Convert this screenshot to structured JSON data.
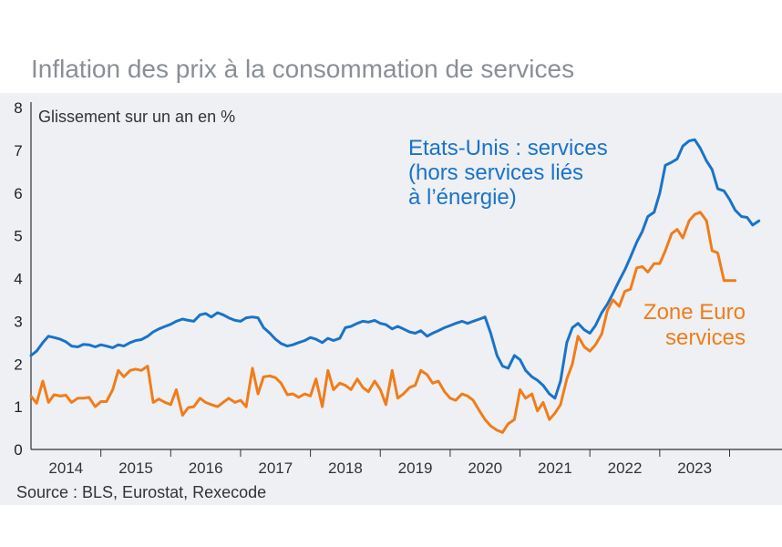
{
  "title": "Inflation des prix à la consommation de services",
  "source": "Source : BLS, Eurostat, Rexecode",
  "colors": {
    "us": "#1a73c8",
    "eu": "#f07d1a",
    "panel": "#eef0f3"
  },
  "chart_data": {
    "type": "line",
    "title": "Inflation des prix à la consommation de services",
    "ylabel": "Glissement sur un an en %",
    "xlabel": "",
    "ylim": [
      0,
      8
    ],
    "yticks": [
      0,
      1,
      2,
      3,
      4,
      5,
      6,
      7,
      8
    ],
    "xlim": [
      2013.5,
      2024.25
    ],
    "xtick_labels": [
      {
        "label": "2014",
        "x": 2014.0
      },
      {
        "label": "2015",
        "x": 2015.0
      },
      {
        "label": "2016",
        "x": 2016.0
      },
      {
        "label": "2017",
        "x": 2017.0
      },
      {
        "label": "2018",
        "x": 2018.0
      },
      {
        "label": "2019",
        "x": 2019.0
      },
      {
        "label": "2020",
        "x": 2020.0
      },
      {
        "label": "2021",
        "x": 2021.0
      },
      {
        "label": "2022",
        "x": 2022.0
      },
      {
        "label": "2023",
        "x": 2023.0
      }
    ],
    "series": [
      {
        "name": "Etats-Unis : services (hors services liés à l’énergie)",
        "label_lines": [
          "Etats-Unis : services",
          "(hors services liés",
          " à l’énergie)"
        ],
        "color": "#1a73c8",
        "points": [
          [
            2013.5,
            2.2
          ],
          [
            2013.58,
            2.3
          ],
          [
            2013.67,
            2.5
          ],
          [
            2013.75,
            2.65
          ],
          [
            2013.83,
            2.62
          ],
          [
            2013.92,
            2.58
          ],
          [
            2014.0,
            2.52
          ],
          [
            2014.08,
            2.42
          ],
          [
            2014.17,
            2.4
          ],
          [
            2014.25,
            2.46
          ],
          [
            2014.33,
            2.45
          ],
          [
            2014.42,
            2.4
          ],
          [
            2014.5,
            2.45
          ],
          [
            2014.58,
            2.42
          ],
          [
            2014.67,
            2.38
          ],
          [
            2014.75,
            2.45
          ],
          [
            2014.83,
            2.42
          ],
          [
            2014.92,
            2.5
          ],
          [
            2015.0,
            2.55
          ],
          [
            2015.08,
            2.57
          ],
          [
            2015.17,
            2.65
          ],
          [
            2015.25,
            2.75
          ],
          [
            2015.33,
            2.82
          ],
          [
            2015.42,
            2.88
          ],
          [
            2015.5,
            2.93
          ],
          [
            2015.58,
            3.0
          ],
          [
            2015.67,
            3.05
          ],
          [
            2015.75,
            3.02
          ],
          [
            2015.83,
            3.0
          ],
          [
            2015.92,
            3.15
          ],
          [
            2016.0,
            3.18
          ],
          [
            2016.08,
            3.1
          ],
          [
            2016.17,
            3.2
          ],
          [
            2016.25,
            3.15
          ],
          [
            2016.33,
            3.08
          ],
          [
            2016.42,
            3.02
          ],
          [
            2016.5,
            3.0
          ],
          [
            2016.58,
            3.08
          ],
          [
            2016.67,
            3.1
          ],
          [
            2016.75,
            3.08
          ],
          [
            2016.83,
            2.85
          ],
          [
            2016.92,
            2.72
          ],
          [
            2017.0,
            2.58
          ],
          [
            2017.08,
            2.48
          ],
          [
            2017.17,
            2.42
          ],
          [
            2017.25,
            2.45
          ],
          [
            2017.33,
            2.5
          ],
          [
            2017.42,
            2.55
          ],
          [
            2017.5,
            2.62
          ],
          [
            2017.58,
            2.58
          ],
          [
            2017.67,
            2.5
          ],
          [
            2017.75,
            2.6
          ],
          [
            2017.83,
            2.55
          ],
          [
            2017.92,
            2.6
          ],
          [
            2018.0,
            2.85
          ],
          [
            2018.08,
            2.88
          ],
          [
            2018.17,
            2.95
          ],
          [
            2018.25,
            3.0
          ],
          [
            2018.33,
            2.98
          ],
          [
            2018.42,
            3.02
          ],
          [
            2018.5,
            2.95
          ],
          [
            2018.58,
            2.92
          ],
          [
            2018.67,
            2.82
          ],
          [
            2018.75,
            2.88
          ],
          [
            2018.83,
            2.82
          ],
          [
            2018.92,
            2.75
          ],
          [
            2019.0,
            2.72
          ],
          [
            2019.08,
            2.78
          ],
          [
            2019.17,
            2.65
          ],
          [
            2019.25,
            2.72
          ],
          [
            2019.33,
            2.78
          ],
          [
            2019.42,
            2.85
          ],
          [
            2019.5,
            2.9
          ],
          [
            2019.58,
            2.95
          ],
          [
            2019.67,
            3.0
          ],
          [
            2019.75,
            2.95
          ],
          [
            2019.83,
            3.0
          ],
          [
            2019.92,
            3.05
          ],
          [
            2020.0,
            3.1
          ],
          [
            2020.08,
            2.72
          ],
          [
            2020.17,
            2.2
          ],
          [
            2020.25,
            1.95
          ],
          [
            2020.33,
            1.9
          ],
          [
            2020.42,
            2.2
          ],
          [
            2020.5,
            2.1
          ],
          [
            2020.58,
            1.85
          ],
          [
            2020.67,
            1.7
          ],
          [
            2020.75,
            1.62
          ],
          [
            2020.83,
            1.5
          ],
          [
            2020.92,
            1.3
          ],
          [
            2021.0,
            1.2
          ],
          [
            2021.08,
            1.6
          ],
          [
            2021.17,
            2.5
          ],
          [
            2021.25,
            2.85
          ],
          [
            2021.33,
            2.95
          ],
          [
            2021.42,
            2.8
          ],
          [
            2021.5,
            2.72
          ],
          [
            2021.58,
            2.9
          ],
          [
            2021.67,
            3.2
          ],
          [
            2021.75,
            3.4
          ],
          [
            2021.83,
            3.65
          ],
          [
            2021.92,
            3.95
          ],
          [
            2022.0,
            4.2
          ],
          [
            2022.08,
            4.5
          ],
          [
            2022.17,
            4.85
          ],
          [
            2022.25,
            5.1
          ],
          [
            2022.33,
            5.45
          ],
          [
            2022.42,
            5.55
          ],
          [
            2022.5,
            6.0
          ],
          [
            2022.58,
            6.65
          ],
          [
            2022.67,
            6.72
          ],
          [
            2022.75,
            6.8
          ],
          [
            2022.83,
            7.1
          ],
          [
            2022.92,
            7.22
          ],
          [
            2023.0,
            7.25
          ],
          [
            2023.08,
            7.05
          ],
          [
            2023.17,
            6.75
          ],
          [
            2023.25,
            6.55
          ],
          [
            2023.33,
            6.1
          ],
          [
            2023.42,
            6.05
          ],
          [
            2023.5,
            5.85
          ],
          [
            2023.58,
            5.6
          ],
          [
            2023.67,
            5.45
          ],
          [
            2023.75,
            5.43
          ],
          [
            2023.83,
            5.25
          ],
          [
            2023.92,
            5.35
          ]
        ]
      },
      {
        "name": "Zone Euro services",
        "label_lines": [
          "Zone Euro",
          "services"
        ],
        "color": "#f07d1a",
        "points": [
          [
            2013.5,
            1.25
          ],
          [
            2013.58,
            1.08
          ],
          [
            2013.67,
            1.6
          ],
          [
            2013.75,
            1.1
          ],
          [
            2013.83,
            1.28
          ],
          [
            2013.92,
            1.25
          ],
          [
            2014.0,
            1.27
          ],
          [
            2014.08,
            1.1
          ],
          [
            2014.17,
            1.2
          ],
          [
            2014.25,
            1.2
          ],
          [
            2014.33,
            1.22
          ],
          [
            2014.42,
            1.0
          ],
          [
            2014.5,
            1.12
          ],
          [
            2014.58,
            1.12
          ],
          [
            2014.67,
            1.4
          ],
          [
            2014.75,
            1.85
          ],
          [
            2014.83,
            1.7
          ],
          [
            2014.92,
            1.85
          ],
          [
            2015.0,
            1.88
          ],
          [
            2015.08,
            1.85
          ],
          [
            2015.17,
            1.95
          ],
          [
            2015.25,
            1.1
          ],
          [
            2015.33,
            1.18
          ],
          [
            2015.42,
            1.1
          ],
          [
            2015.5,
            1.05
          ],
          [
            2015.58,
            1.4
          ],
          [
            2015.67,
            0.8
          ],
          [
            2015.75,
            0.98
          ],
          [
            2015.83,
            1.0
          ],
          [
            2015.92,
            1.2
          ],
          [
            2016.0,
            1.1
          ],
          [
            2016.08,
            1.05
          ],
          [
            2016.17,
            1.0
          ],
          [
            2016.25,
            1.1
          ],
          [
            2016.33,
            1.2
          ],
          [
            2016.42,
            1.1
          ],
          [
            2016.5,
            1.15
          ],
          [
            2016.58,
            1.0
          ],
          [
            2016.67,
            1.9
          ],
          [
            2016.75,
            1.3
          ],
          [
            2016.83,
            1.7
          ],
          [
            2016.92,
            1.72
          ],
          [
            2017.0,
            1.68
          ],
          [
            2017.08,
            1.55
          ],
          [
            2017.17,
            1.28
          ],
          [
            2017.25,
            1.3
          ],
          [
            2017.33,
            1.22
          ],
          [
            2017.42,
            1.3
          ],
          [
            2017.5,
            1.25
          ],
          [
            2017.58,
            1.65
          ],
          [
            2017.67,
            1.0
          ],
          [
            2017.75,
            1.85
          ],
          [
            2017.83,
            1.4
          ],
          [
            2017.92,
            1.55
          ],
          [
            2018.0,
            1.5
          ],
          [
            2018.08,
            1.4
          ],
          [
            2018.17,
            1.65
          ],
          [
            2018.25,
            1.45
          ],
          [
            2018.33,
            1.35
          ],
          [
            2018.42,
            1.6
          ],
          [
            2018.5,
            1.4
          ],
          [
            2018.58,
            1.05
          ],
          [
            2018.67,
            1.85
          ],
          [
            2018.75,
            1.2
          ],
          [
            2018.83,
            1.3
          ],
          [
            2018.92,
            1.45
          ],
          [
            2019.0,
            1.5
          ],
          [
            2019.08,
            1.85
          ],
          [
            2019.17,
            1.75
          ],
          [
            2019.25,
            1.55
          ],
          [
            2019.33,
            1.6
          ],
          [
            2019.42,
            1.35
          ],
          [
            2019.5,
            1.2
          ],
          [
            2019.58,
            1.15
          ],
          [
            2019.67,
            1.3
          ],
          [
            2019.75,
            1.25
          ],
          [
            2019.83,
            1.15
          ],
          [
            2019.92,
            0.9
          ],
          [
            2020.0,
            0.7
          ],
          [
            2020.08,
            0.55
          ],
          [
            2020.17,
            0.45
          ],
          [
            2020.25,
            0.4
          ],
          [
            2020.33,
            0.6
          ],
          [
            2020.42,
            0.7
          ],
          [
            2020.5,
            1.4
          ],
          [
            2020.58,
            1.2
          ],
          [
            2020.67,
            1.3
          ],
          [
            2020.75,
            0.9
          ],
          [
            2020.83,
            1.1
          ],
          [
            2020.92,
            0.7
          ],
          [
            2021.0,
            0.85
          ],
          [
            2021.08,
            1.05
          ],
          [
            2021.17,
            1.65
          ],
          [
            2021.25,
            2.0
          ],
          [
            2021.33,
            2.65
          ],
          [
            2021.42,
            2.4
          ],
          [
            2021.5,
            2.3
          ],
          [
            2021.58,
            2.45
          ],
          [
            2021.67,
            2.7
          ],
          [
            2021.75,
            3.25
          ],
          [
            2021.83,
            3.5
          ],
          [
            2021.92,
            3.35
          ],
          [
            2022.0,
            3.7
          ],
          [
            2022.08,
            3.75
          ],
          [
            2022.17,
            4.25
          ],
          [
            2022.25,
            4.28
          ],
          [
            2022.33,
            4.15
          ],
          [
            2022.42,
            4.35
          ],
          [
            2022.5,
            4.35
          ],
          [
            2022.58,
            4.65
          ],
          [
            2022.67,
            5.05
          ],
          [
            2022.75,
            5.15
          ],
          [
            2022.83,
            4.95
          ],
          [
            2022.92,
            5.35
          ],
          [
            2023.0,
            5.5
          ],
          [
            2023.08,
            5.55
          ],
          [
            2023.17,
            5.35
          ],
          [
            2023.25,
            4.65
          ],
          [
            2023.33,
            4.6
          ],
          [
            2023.42,
            3.95
          ],
          [
            2023.5,
            3.95
          ],
          [
            2023.58,
            3.95
          ]
        ]
      }
    ]
  }
}
